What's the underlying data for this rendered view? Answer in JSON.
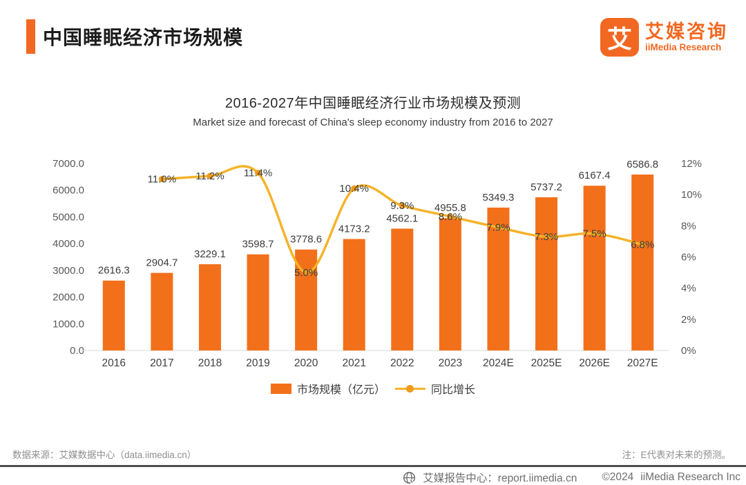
{
  "page": {
    "background": "#ffffff"
  },
  "header": {
    "title": "中国睡眠经济市场规模",
    "accent_color": "#F26822",
    "logo": {
      "glyph": "艾",
      "brand_cn": "艾媒咨询",
      "brand_en": "iiMedia Research",
      "color": "#F26822"
    }
  },
  "chart": {
    "title": "2016-2027年中国睡眠经济行业市场规模及预测",
    "subtitle": "Market size and forecast of China's sleep economy industry from 2016 to 2027"
  },
  "chart_data": {
    "type": "bar+line",
    "title": "2016-2027年中国睡眠经济行业市场规模及预测",
    "subtitle": "Market size and forecast of China's sleep economy industry from 2016 to 2027",
    "categories": [
      "2016",
      "2017",
      "2018",
      "2019",
      "2020",
      "2021",
      "2022",
      "2023",
      "2024E",
      "2025E",
      "2026E",
      "2027E"
    ],
    "series": [
      {
        "name": "市场规模（亿元）",
        "type": "bar",
        "axis": "left",
        "color": "#F3701B",
        "values": [
          2616.3,
          2904.7,
          3229.1,
          3598.7,
          3778.6,
          4173.2,
          4562.1,
          4955.8,
          5349.3,
          5737.2,
          6167.4,
          6586.8
        ]
      },
      {
        "name": "同比增长",
        "type": "line",
        "axis": "right",
        "color": "#F5B32A",
        "marker_color": "#EF9B1C",
        "values": [
          null,
          11.0,
          11.2,
          11.4,
          5.0,
          10.4,
          9.3,
          8.6,
          7.9,
          7.3,
          7.5,
          6.8
        ]
      }
    ],
    "left_axis": {
      "min": 0,
      "max": 7000,
      "ticks": [
        "0.0",
        "1000.0",
        "2000.0",
        "3000.0",
        "4000.0",
        "5000.0",
        "6000.0",
        "7000.0"
      ]
    },
    "right_axis": {
      "min": 0,
      "max": 12,
      "ticks": [
        "0%",
        "2%",
        "4%",
        "6%",
        "8%",
        "10%",
        "12%"
      ]
    },
    "grid": false,
    "legend_position": "bottom"
  },
  "footer": {
    "source_note": "数据来源：艾媒数据中心（data.iimedia.cn）",
    "forecast_note": "注：E代表对未来的预测。",
    "report_center": "艾媒报告中心：report.iimedia.cn",
    "copyright": "©2024",
    "company": "iiMedia Research Inc"
  }
}
